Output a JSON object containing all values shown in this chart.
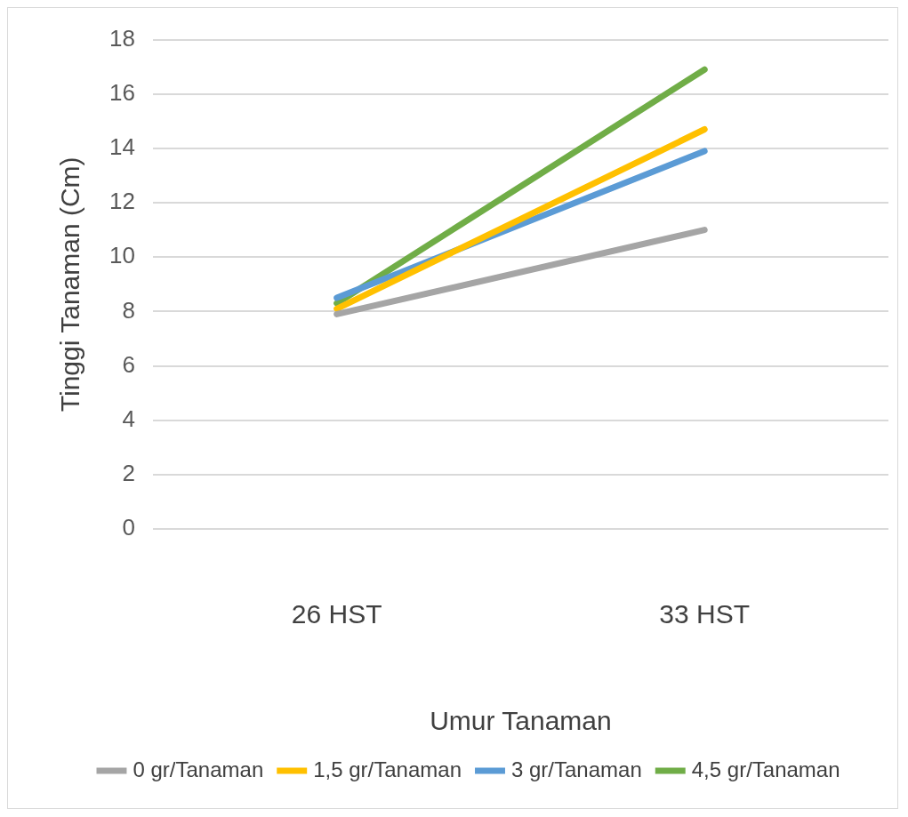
{
  "chart_data": {
    "type": "line",
    "xlabel": "Umur Tanaman",
    "ylabel": "Tinggi Tanaman (Cm)",
    "categories": [
      "26 HST",
      "33 HST"
    ],
    "series": [
      {
        "name": "0 gr/Tanaman",
        "color": "#a5a5a5",
        "values": [
          7.9,
          11.0
        ]
      },
      {
        "name": "1,5 gr/Tanaman",
        "color": "#ffc000",
        "values": [
          8.1,
          14.7
        ]
      },
      {
        "name": "3 gr/Tanaman",
        "color": "#5b9bd5",
        "values": [
          8.5,
          13.9
        ]
      },
      {
        "name": "4,5 gr/Tanaman",
        "color": "#70ad47",
        "values": [
          8.3,
          16.9
        ]
      }
    ],
    "ylim": [
      0,
      18
    ],
    "yticks": [
      0,
      2,
      4,
      6,
      8,
      10,
      12,
      14,
      16,
      18
    ],
    "grid": "y",
    "legend": "bottom",
    "marker": "none",
    "line_style": "solid"
  }
}
